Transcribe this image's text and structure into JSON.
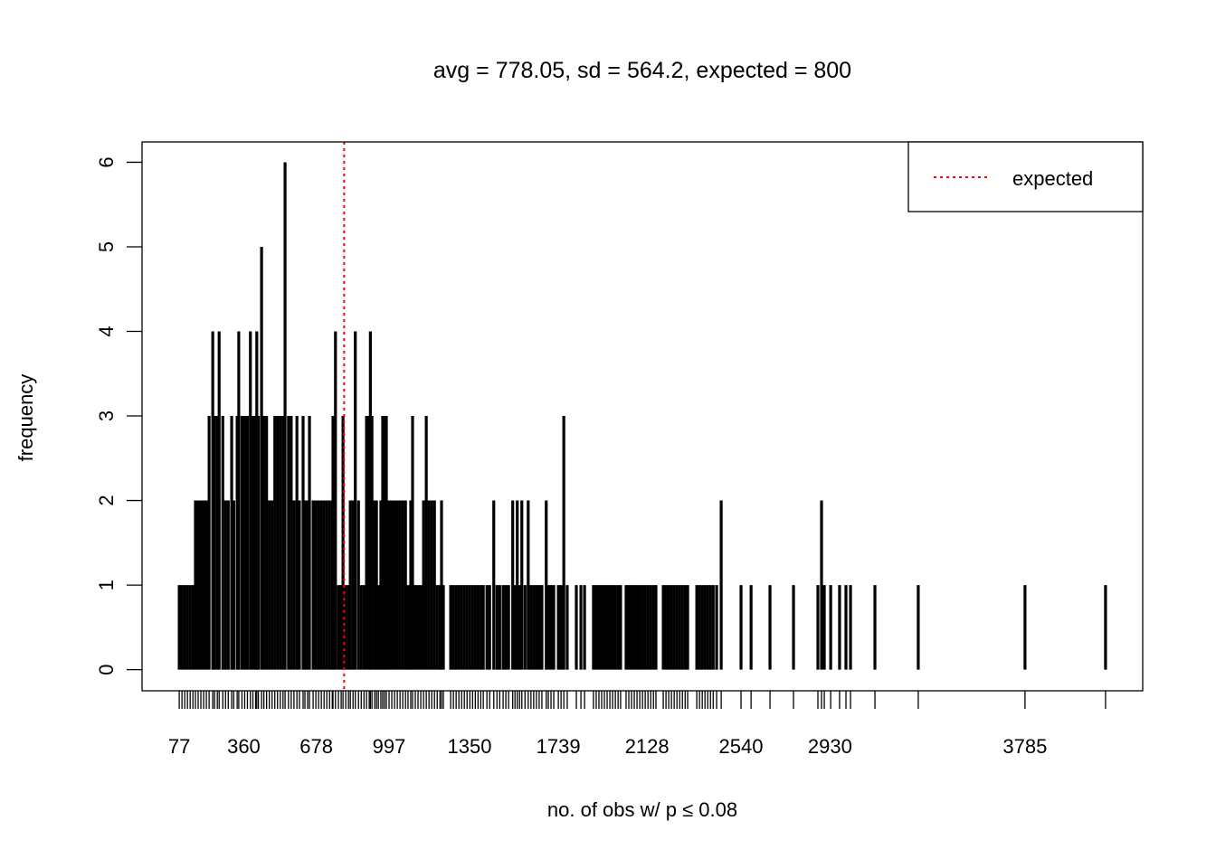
{
  "chart_data": {
    "type": "bar",
    "style": "vertical lines (type h) with rug ticks",
    "title": "avg = 778.05, sd = 564.2, expected = 800",
    "xlabel": "no. of obs w/ p ≤ 0.08",
    "ylabel": "frequency",
    "xlim": [
      -86,
      4301
    ],
    "ylim": [
      -0.25,
      6.24
    ],
    "x_tick_labels": [
      "77",
      "360",
      "678",
      "997",
      "1350",
      "1739",
      "2128",
      "2540",
      "2930",
      "3785"
    ],
    "x_tick_values": [
      77,
      360,
      678,
      997,
      1350,
      1739,
      2128,
      2540,
      2930,
      3785
    ],
    "y_ticks": [
      0,
      1,
      2,
      3,
      4,
      5,
      6
    ],
    "grid": false,
    "bar_color": "#000000",
    "expected": {
      "value": 800,
      "color": "#ff0000",
      "style": "dotted"
    },
    "legend": {
      "position": "top-right",
      "entries": [
        {
          "label": "expected",
          "color": "#ff0000",
          "style": "dotted"
        }
      ]
    },
    "bars": [
      [
        77,
        1
      ],
      [
        89,
        1
      ],
      [
        101,
        1
      ],
      [
        113,
        1
      ],
      [
        125,
        1
      ],
      [
        137,
        1
      ],
      [
        148,
        2
      ],
      [
        160,
        2
      ],
      [
        172,
        2
      ],
      [
        184,
        2
      ],
      [
        196,
        2
      ],
      [
        208,
        3
      ],
      [
        224,
        4
      ],
      [
        232,
        3
      ],
      [
        244,
        3
      ],
      [
        252,
        4
      ],
      [
        268,
        3
      ],
      [
        280,
        2
      ],
      [
        292,
        2
      ],
      [
        307,
        3
      ],
      [
        316,
        2
      ],
      [
        331,
        3
      ],
      [
        338,
        4
      ],
      [
        352,
        3
      ],
      [
        364,
        3
      ],
      [
        376,
        3
      ],
      [
        389,
        4
      ],
      [
        400,
        3
      ],
      [
        412,
        3
      ],
      [
        417,
        4
      ],
      [
        424,
        3
      ],
      [
        438,
        5
      ],
      [
        448,
        3
      ],
      [
        460,
        3
      ],
      [
        472,
        2
      ],
      [
        484,
        2
      ],
      [
        496,
        3
      ],
      [
        508,
        3
      ],
      [
        520,
        3
      ],
      [
        532,
        3
      ],
      [
        541,
        6
      ],
      [
        556,
        3
      ],
      [
        568,
        3
      ],
      [
        580,
        2
      ],
      [
        593,
        3
      ],
      [
        604,
        2
      ],
      [
        620,
        3
      ],
      [
        628,
        2
      ],
      [
        640,
        2
      ],
      [
        648,
        3
      ],
      [
        664,
        2
      ],
      [
        676,
        2
      ],
      [
        688,
        2
      ],
      [
        700,
        2
      ],
      [
        712,
        2
      ],
      [
        724,
        2
      ],
      [
        736,
        2
      ],
      [
        748,
        2
      ],
      [
        751,
        3
      ],
      [
        762,
        4
      ],
      [
        775,
        1
      ],
      [
        787,
        1
      ],
      [
        795,
        3
      ],
      [
        807,
        1
      ],
      [
        819,
        1
      ],
      [
        827,
        2
      ],
      [
        839,
        2
      ],
      [
        849,
        4
      ],
      [
        863,
        2
      ],
      [
        875,
        1
      ],
      [
        887,
        1
      ],
      [
        898,
        3
      ],
      [
        910,
        3
      ],
      [
        915,
        4
      ],
      [
        922,
        3
      ],
      [
        934,
        2
      ],
      [
        942,
        2
      ],
      [
        950,
        1
      ],
      [
        961,
        2
      ],
      [
        969,
        3
      ],
      [
        977,
        3
      ],
      [
        985,
        3
      ],
      [
        997,
        2
      ],
      [
        1009,
        2
      ],
      [
        1021,
        2
      ],
      [
        1033,
        2
      ],
      [
        1045,
        2
      ],
      [
        1057,
        2
      ],
      [
        1069,
        2
      ],
      [
        1080,
        1
      ],
      [
        1092,
        2
      ],
      [
        1100,
        3
      ],
      [
        1112,
        1
      ],
      [
        1124,
        1
      ],
      [
        1136,
        1
      ],
      [
        1148,
        2
      ],
      [
        1160,
        3
      ],
      [
        1172,
        2
      ],
      [
        1184,
        2
      ],
      [
        1196,
        2
      ],
      [
        1208,
        1
      ],
      [
        1220,
        1
      ],
      [
        1227,
        2
      ],
      [
        1235,
        1
      ],
      [
        1267,
        1
      ],
      [
        1279,
        1
      ],
      [
        1291,
        1
      ],
      [
        1303,
        1
      ],
      [
        1315,
        1
      ],
      [
        1327,
        1
      ],
      [
        1339,
        1
      ],
      [
        1351,
        1
      ],
      [
        1363,
        1
      ],
      [
        1375,
        1
      ],
      [
        1387,
        1
      ],
      [
        1399,
        1
      ],
      [
        1410,
        1
      ],
      [
        1426,
        1
      ],
      [
        1438,
        1
      ],
      [
        1456,
        2
      ],
      [
        1470,
        1
      ],
      [
        1482,
        1
      ],
      [
        1497,
        1
      ],
      [
        1509,
        1
      ],
      [
        1521,
        1
      ],
      [
        1539,
        2
      ],
      [
        1549,
        1
      ],
      [
        1559,
        2
      ],
      [
        1569,
        1
      ],
      [
        1579,
        2
      ],
      [
        1593,
        1
      ],
      [
        1607,
        2
      ],
      [
        1619,
        1
      ],
      [
        1631,
        1
      ],
      [
        1643,
        1
      ],
      [
        1655,
        1
      ],
      [
        1667,
        1
      ],
      [
        1686,
        2
      ],
      [
        1695,
        1
      ],
      [
        1707,
        1
      ],
      [
        1719,
        1
      ],
      [
        1739,
        1
      ],
      [
        1751,
        1
      ],
      [
        1763,
        3
      ],
      [
        1778,
        1
      ],
      [
        1818,
        1
      ],
      [
        1838,
        1
      ],
      [
        1854,
        1
      ],
      [
        1893,
        1
      ],
      [
        1905,
        1
      ],
      [
        1917,
        1
      ],
      [
        1929,
        1
      ],
      [
        1941,
        1
      ],
      [
        1953,
        1
      ],
      [
        1965,
        1
      ],
      [
        1977,
        1
      ],
      [
        1989,
        1
      ],
      [
        2001,
        1
      ],
      [
        2012,
        1
      ],
      [
        2036,
        1
      ],
      [
        2048,
        1
      ],
      [
        2060,
        1
      ],
      [
        2072,
        1
      ],
      [
        2084,
        1
      ],
      [
        2096,
        1
      ],
      [
        2108,
        1
      ],
      [
        2120,
        1
      ],
      [
        2132,
        1
      ],
      [
        2144,
        1
      ],
      [
        2156,
        1
      ],
      [
        2167,
        1
      ],
      [
        2199,
        1
      ],
      [
        2211,
        1
      ],
      [
        2223,
        1
      ],
      [
        2235,
        1
      ],
      [
        2247,
        1
      ],
      [
        2259,
        1
      ],
      [
        2271,
        1
      ],
      [
        2283,
        1
      ],
      [
        2295,
        1
      ],
      [
        2306,
        1
      ],
      [
        2346,
        1
      ],
      [
        2358,
        1
      ],
      [
        2370,
        1
      ],
      [
        2382,
        1
      ],
      [
        2394,
        1
      ],
      [
        2406,
        1
      ],
      [
        2418,
        1
      ],
      [
        2433,
        1
      ],
      [
        2453,
        2
      ],
      [
        2540,
        1
      ],
      [
        2584,
        1
      ],
      [
        2667,
        1
      ],
      [
        2770,
        1
      ],
      [
        2877,
        1
      ],
      [
        2893,
        2
      ],
      [
        2905,
        1
      ],
      [
        2933,
        1
      ],
      [
        2972,
        1
      ],
      [
        3000,
        1
      ],
      [
        3020,
        1
      ],
      [
        3127,
        1
      ],
      [
        3317,
        1
      ],
      [
        3785,
        1
      ],
      [
        4138,
        1
      ]
    ]
  }
}
